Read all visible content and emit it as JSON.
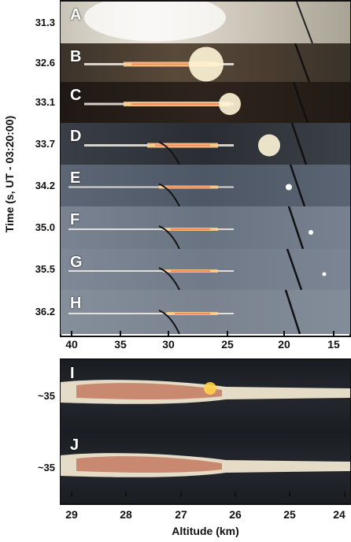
{
  "y_axis_label": "Time (s, UT - 03:20:00)",
  "top_panels": [
    {
      "letter": "A",
      "time": "31.3"
    },
    {
      "letter": "B",
      "time": "32.6"
    },
    {
      "letter": "C",
      "time": "33.1"
    },
    {
      "letter": "D",
      "time": "33.7"
    },
    {
      "letter": "E",
      "time": "34.2"
    },
    {
      "letter": "F",
      "time": "35.0"
    },
    {
      "letter": "G",
      "time": "35.5"
    },
    {
      "letter": "H",
      "time": "36.2"
    }
  ],
  "top_axis_ticks": [
    "40",
    "35",
    "30",
    "25",
    "20",
    "15"
  ],
  "bottom_panels": [
    {
      "letter": "I",
      "time": "~35"
    },
    {
      "letter": "J",
      "time": "~35"
    }
  ],
  "bottom_axis_ticks": [
    "29",
    "28",
    "27",
    "26",
    "25",
    "24"
  ],
  "x_axis_label": "Altitude (km)"
}
